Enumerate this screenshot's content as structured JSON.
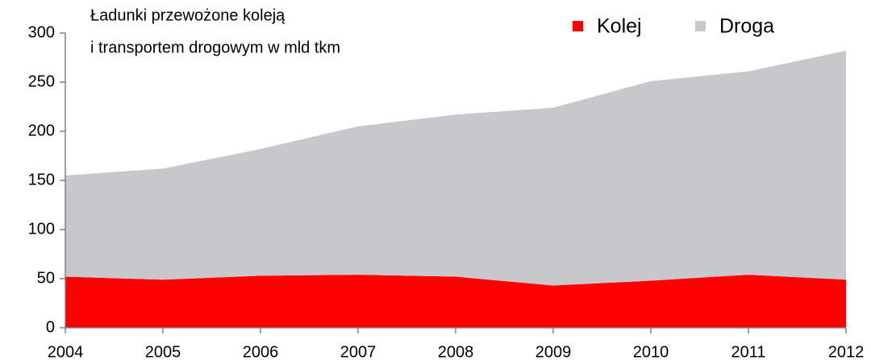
{
  "chart_data": {
    "type": "stacked_area",
    "title": [
      "Ładunki przewożone koleją",
      "i transportem drogowym w mld tkm"
    ],
    "categories": [
      "2004",
      "2005",
      "2006",
      "2007",
      "2008",
      "2009",
      "2010",
      "2011",
      "2012"
    ],
    "series": [
      {
        "name": "Kolej",
        "color": "#ff0000",
        "values": [
          52,
          49,
          53,
          54,
          52,
          43,
          48,
          54,
          49
        ]
      },
      {
        "name": "Droga",
        "color": "#c8c7cc",
        "values": [
          103,
          113,
          129,
          151,
          165,
          181,
          203,
          207,
          233
        ]
      }
    ],
    "ylim": [
      0,
      300
    ],
    "yticks": [
      0,
      50,
      100,
      150,
      200,
      250,
      300
    ],
    "legend": "top-right"
  }
}
